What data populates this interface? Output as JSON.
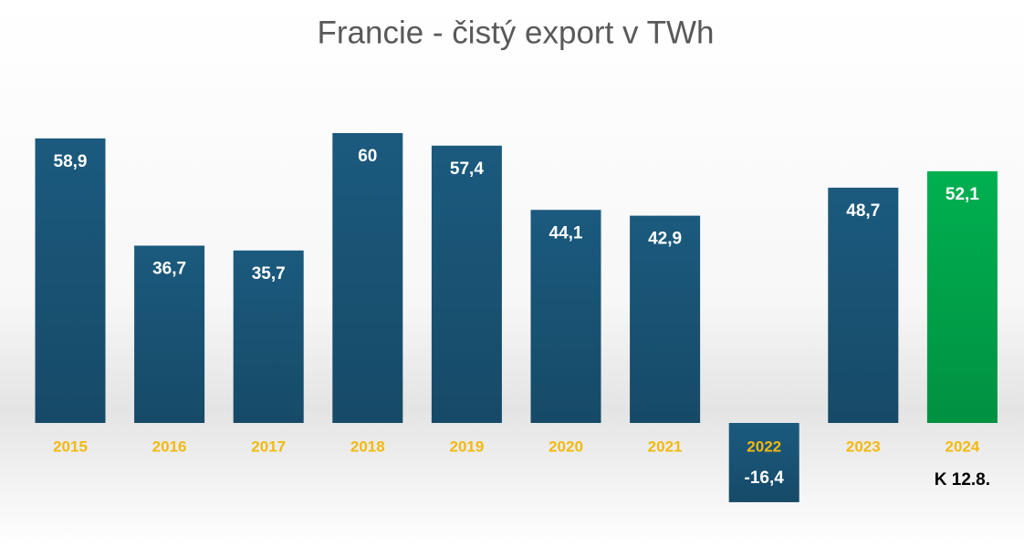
{
  "chart_data": {
    "type": "bar",
    "title": "Francie - čistý export v TWh",
    "categories": [
      "2015",
      "2016",
      "2017",
      "2018",
      "2019",
      "2020",
      "2021",
      "2022",
      "2023",
      "2024"
    ],
    "values": [
      58.9,
      36.7,
      35.7,
      60,
      57.4,
      44.1,
      42.9,
      -16.4,
      48.7,
      52.1
    ],
    "value_labels": [
      "58,9",
      "36,7",
      "35,7",
      "60",
      "57,4",
      "44,1",
      "42,9",
      "-16,4",
      "48,7",
      "52,1"
    ],
    "colors": [
      "#1b5a7e",
      "#1b5a7e",
      "#1b5a7e",
      "#1b5a7e",
      "#1b5a7e",
      "#1b5a7e",
      "#1b5a7e",
      "#1b5a7e",
      "#1b5a7e",
      "#00b050"
    ],
    "category_label_color": "#f2b90f",
    "annotation": "K 12.8."
  }
}
